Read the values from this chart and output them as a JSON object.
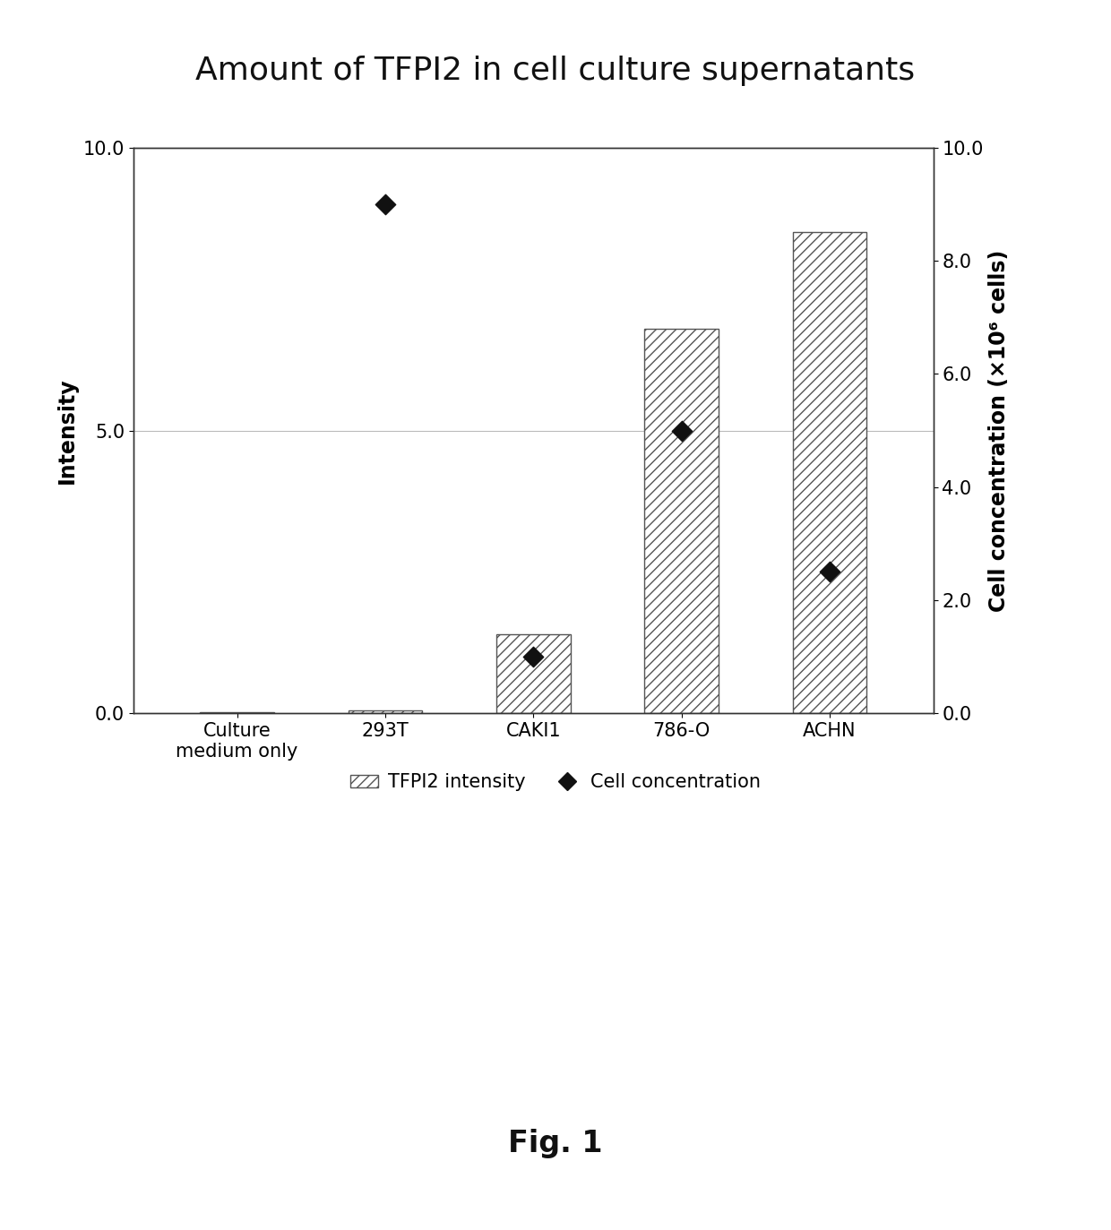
{
  "title": "Amount of TFPI2 in cell culture supernatants",
  "categories": [
    "Culture\nmedium only",
    "293T",
    "CAKI1",
    "786-O",
    "ACHN"
  ],
  "bar_values": [
    0.02,
    0.05,
    1.4,
    6.8,
    8.5
  ],
  "cell_conc_values": [
    null,
    9.0,
    1.0,
    5.0,
    2.5
  ],
  "ylabel_left": "Intensity",
  "ylabel_right": "Cell concentration (×10⁶ cells)",
  "ylim_left": [
    0,
    10.0
  ],
  "ylim_right": [
    0,
    10.0
  ],
  "yticks_left": [
    0.0,
    5.0,
    10.0
  ],
  "yticks_right": [
    0.0,
    2.0,
    4.0,
    6.0,
    8.0,
    10.0
  ],
  "bar_hatch": "///",
  "bar_color": "white",
  "bar_edgecolor": "#555555",
  "dot_color": "#111111",
  "dot_marker": "D",
  "dot_size": 130,
  "legend_bar_label": "TFPI2 intensity",
  "legend_dot_label": "Cell concentration",
  "fig_caption": "Fig. 1",
  "background_color": "#ffffff",
  "grid_color": "#bbbbbb",
  "title_fontsize": 26,
  "axis_label_fontsize": 17,
  "tick_fontsize": 15,
  "legend_fontsize": 15,
  "caption_fontsize": 24
}
